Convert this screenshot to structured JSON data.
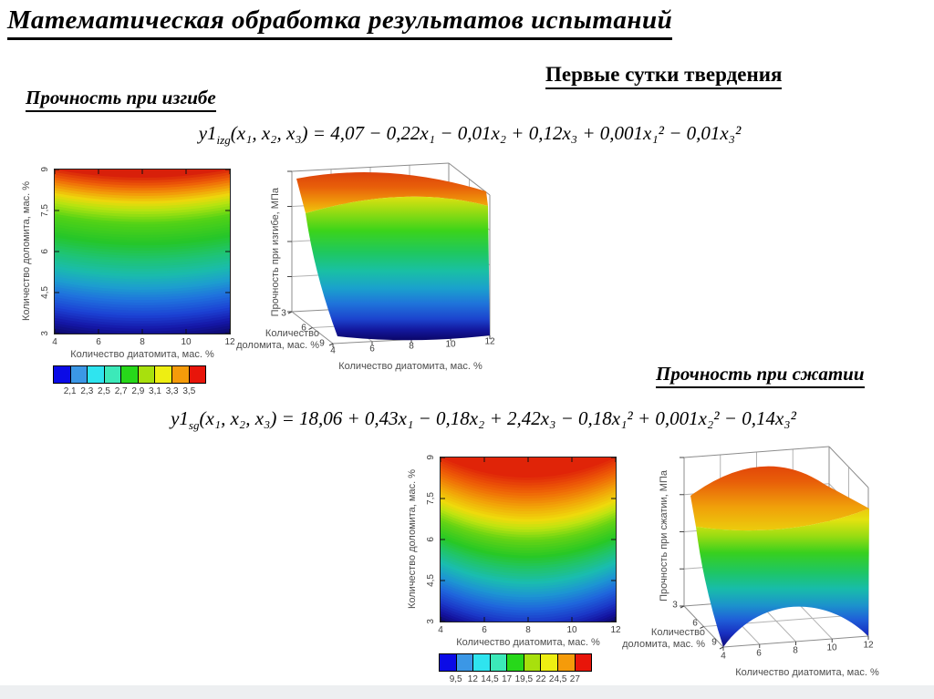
{
  "slide": {
    "title": "Математическая обработка результатов испытаний",
    "subtitle": "Первые сутки твердения",
    "flexural_label": "Прочность при изгибе",
    "compressive_label": "Прочность при сжатии"
  },
  "formulas": {
    "flexural": {
      "name": "y1",
      "sub": "izg",
      "body": "(x₁, x₂, x₃) = 4,07 − 0,22x₁ − 0,01x₂ + 0,12x₃ + 0,001x₁² − 0,01x₃²"
    },
    "compressive": {
      "name": "y1",
      "sub": "sg",
      "body": "(x₁, x₂, x₃) = 18,06 + 0,43x₁ − 0,18x₂ + 2,42x₃ − 0,18x₁² + 0,001x₂² − 0,14x₃²"
    }
  },
  "axes": {
    "x_label": "Количество диатомита, мас. %",
    "y_label": "Количество  доломита, мас. %",
    "z_flexural": "Прочность при изгибе, МПа",
    "z_compressive": "Прочность при сжатии, МПа",
    "depth_line1": "Количество",
    "depth_line2": "доломита, мас. %",
    "x_ticks_display": [
      "4",
      "6",
      "8",
      "10",
      "12"
    ],
    "y_ticks_display": [
      "3",
      "4,5",
      "6",
      "7,5",
      "9"
    ],
    "depth_ticks_display": [
      "3",
      "6",
      "9"
    ]
  },
  "colorbars": {
    "flexural": [
      "2,1",
      "2,3",
      "2,5",
      "2,7",
      "2,9",
      "3,1",
      "3,3",
      "3,5"
    ],
    "compressive": [
      "9,5",
      "12",
      "14,5",
      "17",
      "19,5",
      "22",
      "24,5",
      "27"
    ]
  },
  "chart_data": [
    {
      "id": "flexural-contour",
      "type": "heatmap",
      "variant": "filled-contour-projection",
      "title": "Прочность при изгибе",
      "xlabel": "Количество диатомита, мас. %",
      "ylabel": "Количество доломита, мас. %",
      "xlim": [
        4,
        12
      ],
      "ylim": [
        3,
        9
      ],
      "x_ticks": [
        4,
        6,
        8,
        10,
        12
      ],
      "y_ticks": [
        3,
        4.5,
        6,
        7.5,
        9
      ],
      "colormap": "jet",
      "colorbar_ticks": [
        2.1,
        2.3,
        2.5,
        2.7,
        2.9,
        3.1,
        3.3,
        3.5
      ],
      "value_units": "МПа",
      "orientation_note": "value grows bottom(blue ≈2.0) → top(red ≈3.6), contour bands sag slightly at mid-x",
      "model": "y1_izg(x1,x2,x3) = 4.07 − 0.22x1 − 0.01x2 + 0.12x3 + 0.001x1^2 − 0.01x3^2"
    },
    {
      "id": "flexural-surface-3d",
      "type": "heatmap",
      "variant": "3d-surface",
      "zlabel": "Прочность при изгибе, МПа",
      "xlabel": "Количество диатомита, мас. %",
      "ylabel": "Количество доломита, мас. %",
      "x_ticks": [
        4,
        6,
        8,
        10,
        12
      ],
      "y_ticks": [
        3,
        6,
        9
      ],
      "z_ticks": [
        3
      ],
      "colormap": "jet",
      "shape_note": "steep curtain-like surface: high (red) at dolomite=9, falling to dark blue near dolomite=3"
    },
    {
      "id": "compressive-contour",
      "type": "heatmap",
      "variant": "filled-contour-projection",
      "title": "Прочность при сжатии",
      "xlabel": "Количество диатомита, мас. %",
      "ylabel": "Количество доломита, мас. %",
      "xlim": [
        4,
        12
      ],
      "ylim": [
        3,
        9
      ],
      "x_ticks": [
        4,
        6,
        8,
        10,
        12
      ],
      "y_ticks": [
        3,
        4.5,
        6,
        7.5,
        9
      ],
      "colormap": "jet",
      "colorbar_ticks": [
        9.5,
        12,
        14.5,
        17,
        19.5,
        22,
        24.5,
        27
      ],
      "value_units": "МПа",
      "orientation_note": "value grows bottom(blue ≈8) → top(red ≈28), bands strongly bowl-shaped",
      "model": "y1_sg(x1,x2,x3) = 18.06 + 0.43x1 − 0.18x2 + 2.42x3 − 0.18x1^2 + 0.001x2^2 − 0.14x3^2"
    },
    {
      "id": "compressive-surface-3d",
      "type": "heatmap",
      "variant": "3d-surface",
      "zlabel": "Прочность при сжатии, МПа",
      "xlabel": "Количество диатомита, мас. %",
      "ylabel": "Количество доломита, мас. %",
      "x_ticks": [
        4,
        6,
        8,
        10,
        12
      ],
      "y_ticks": [
        3,
        6,
        9
      ],
      "z_ticks": [
        3
      ],
      "colormap": "jet",
      "shape_note": "domed surface, red crest at top, dark-blue front corners with arched lower edge"
    }
  ],
  "render": {
    "jet_segments": [
      "#0b0be6",
      "#3b97e6",
      "#2fe4ef",
      "#3ce9b9",
      "#27d81a",
      "#a8e00d",
      "#eeee12",
      "#f59b0a",
      "#e8150a"
    ],
    "contour1_stops": [
      [
        0,
        "#d8200a"
      ],
      [
        0.06,
        "#ee5e08"
      ],
      [
        0.11,
        "#f29b09"
      ],
      [
        0.16,
        "#edd80c"
      ],
      [
        0.21,
        "#b4e410"
      ],
      [
        0.29,
        "#52d216"
      ],
      [
        0.41,
        "#25c629"
      ],
      [
        0.51,
        "#1fc473"
      ],
      [
        0.6,
        "#1abcab"
      ],
      [
        0.68,
        "#1d9ecf"
      ],
      [
        0.76,
        "#1f72dd"
      ],
      [
        0.85,
        "#1c42d4"
      ],
      [
        0.93,
        "#1517a8"
      ],
      [
        1,
        "#0d0a6e"
      ]
    ],
    "contour2_stops": [
      [
        0,
        "#e02408"
      ],
      [
        0.1,
        "#ef6307"
      ],
      [
        0.19,
        "#f2a408"
      ],
      [
        0.27,
        "#eeda0c"
      ],
      [
        0.32,
        "#c0e410"
      ],
      [
        0.39,
        "#66d414"
      ],
      [
        0.49,
        "#28c824"
      ],
      [
        0.57,
        "#20c46e"
      ],
      [
        0.65,
        "#1abcb0"
      ],
      [
        0.73,
        "#1d96d2"
      ],
      [
        0.81,
        "#1f66dc"
      ],
      [
        0.89,
        "#1b38c8"
      ],
      [
        0.955,
        "#14129e"
      ],
      [
        1,
        "#0d0a6e"
      ]
    ],
    "sag1": 9,
    "sag2": 22
  }
}
